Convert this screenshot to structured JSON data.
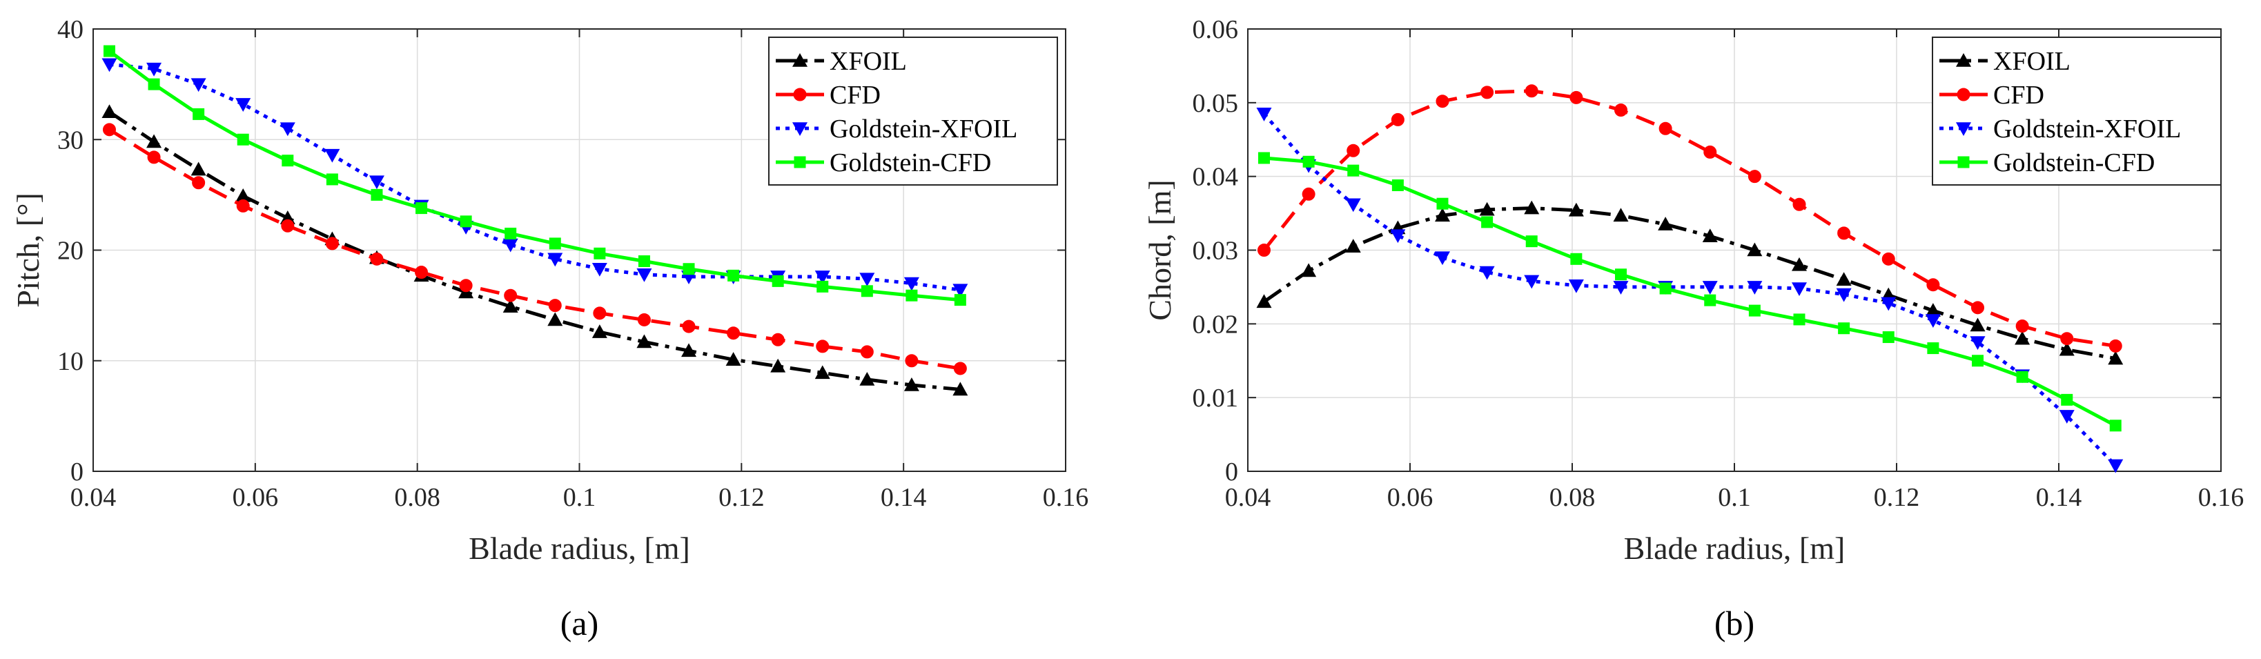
{
  "chart_data": [
    {
      "type": "line",
      "panel_label": "(a)",
      "xlabel": "Blade radius, [m]",
      "ylabel": "Pitch, [°]",
      "xlim": [
        0.04,
        0.16
      ],
      "ylim": [
        0,
        40
      ],
      "xticks": [
        0.04,
        0.06,
        0.08,
        0.1,
        0.12,
        0.14,
        0.16
      ],
      "xtick_labels": [
        "0.04",
        "0.06",
        "0.08",
        "0.1",
        "0.12",
        "0.14",
        "0.16"
      ],
      "yticks": [
        0,
        10,
        20,
        30,
        40
      ],
      "ytick_labels": [
        "0",
        "10",
        "20",
        "30",
        "40"
      ],
      "grid": true,
      "legend_position": "top-right",
      "x": [
        0.042,
        0.0475,
        0.053,
        0.0585,
        0.064,
        0.0695,
        0.075,
        0.0805,
        0.086,
        0.0915,
        0.097,
        0.1025,
        0.108,
        0.1135,
        0.119,
        0.1245,
        0.13,
        0.1355,
        0.141,
        0.147
      ],
      "series": [
        {
          "name": "XFOIL",
          "color": "#000000",
          "marker": "triangle-up",
          "dash": "dashdot",
          "values": [
            32.5,
            29.8,
            27.3,
            24.9,
            22.9,
            21.0,
            19.3,
            17.7,
            16.2,
            14.9,
            13.7,
            12.6,
            11.7,
            10.9,
            10.1,
            9.5,
            8.9,
            8.3,
            7.8,
            7.4
          ]
        },
        {
          "name": "CFD",
          "color": "#ff0000",
          "marker": "circle",
          "dash": "dashed",
          "values": [
            30.9,
            28.4,
            26.1,
            24.0,
            22.2,
            20.6,
            19.2,
            18.0,
            16.8,
            15.9,
            15.0,
            14.3,
            13.7,
            13.1,
            12.5,
            11.9,
            11.3,
            10.8,
            10.0,
            9.3
          ]
        },
        {
          "name": "Goldstein-XFOIL",
          "color": "#0000ff",
          "marker": "triangle-down",
          "dash": "dotted",
          "values": [
            36.8,
            36.4,
            35.0,
            33.2,
            31.0,
            28.6,
            26.2,
            24.0,
            22.1,
            20.5,
            19.2,
            18.3,
            17.8,
            17.6,
            17.6,
            17.6,
            17.6,
            17.4,
            17.0,
            16.4
          ]
        },
        {
          "name": "Goldstein-CFD",
          "color": "#00ff00",
          "marker": "square",
          "dash": "solid",
          "values": [
            38.0,
            35.0,
            32.3,
            30.0,
            28.1,
            26.4,
            25.0,
            23.8,
            22.6,
            21.5,
            20.6,
            19.7,
            19.0,
            18.3,
            17.7,
            17.2,
            16.7,
            16.3,
            15.9,
            15.5
          ]
        }
      ]
    },
    {
      "type": "line",
      "panel_label": "(b)",
      "xlabel": "Blade radius, [m]",
      "ylabel": "Chord, [m]",
      "xlim": [
        0.04,
        0.16
      ],
      "ylim": [
        0,
        0.06
      ],
      "xticks": [
        0.04,
        0.06,
        0.08,
        0.1,
        0.12,
        0.14,
        0.16
      ],
      "xtick_labels": [
        "0.04",
        "0.06",
        "0.08",
        "0.1",
        "0.12",
        "0.14",
        "0.16"
      ],
      "yticks": [
        0,
        0.01,
        0.02,
        0.03,
        0.04,
        0.05,
        0.06
      ],
      "ytick_labels": [
        "0",
        "0.01",
        "0.02",
        "0.03",
        "0.04",
        "0.05",
        "0.06"
      ],
      "grid": true,
      "legend_position": "top-right",
      "x": [
        0.042,
        0.0475,
        0.053,
        0.0585,
        0.064,
        0.0695,
        0.075,
        0.0805,
        0.086,
        0.0915,
        0.097,
        0.1025,
        0.108,
        0.1135,
        0.119,
        0.1245,
        0.13,
        0.1355,
        0.141,
        0.147
      ],
      "series": [
        {
          "name": "XFOIL",
          "color": "#000000",
          "marker": "triangle-up",
          "dash": "dashdot",
          "values": [
            0.023,
            0.0272,
            0.0305,
            0.033,
            0.0347,
            0.0355,
            0.0357,
            0.0354,
            0.0347,
            0.0335,
            0.0319,
            0.03,
            0.028,
            0.026,
            0.0239,
            0.0218,
            0.0198,
            0.018,
            0.0165,
            0.0153
          ]
        },
        {
          "name": "CFD",
          "color": "#ff0000",
          "marker": "circle",
          "dash": "dashed",
          "values": [
            0.03,
            0.0376,
            0.0435,
            0.0477,
            0.0502,
            0.0514,
            0.0516,
            0.0507,
            0.049,
            0.0465,
            0.0433,
            0.04,
            0.0362,
            0.0323,
            0.0288,
            0.0253,
            0.0222,
            0.0197,
            0.018,
            0.017
          ]
        },
        {
          "name": "Goldstein-XFOIL",
          "color": "#0000ff",
          "marker": "triangle-down",
          "dash": "dotted",
          "values": [
            0.0485,
            0.0415,
            0.0362,
            0.032,
            0.029,
            0.027,
            0.0258,
            0.0252,
            0.025,
            0.025,
            0.025,
            0.025,
            0.0248,
            0.024,
            0.0228,
            0.0205,
            0.0175,
            0.013,
            0.0075,
            0.0008
          ]
        },
        {
          "name": "Goldstein-CFD",
          "color": "#00ff00",
          "marker": "square",
          "dash": "solid",
          "values": [
            0.0425,
            0.042,
            0.0408,
            0.0388,
            0.0363,
            0.0338,
            0.0312,
            0.0288,
            0.0267,
            0.0248,
            0.0232,
            0.0218,
            0.0206,
            0.0194,
            0.0182,
            0.0167,
            0.015,
            0.0128,
            0.0097,
            0.0062
          ]
        }
      ]
    }
  ]
}
